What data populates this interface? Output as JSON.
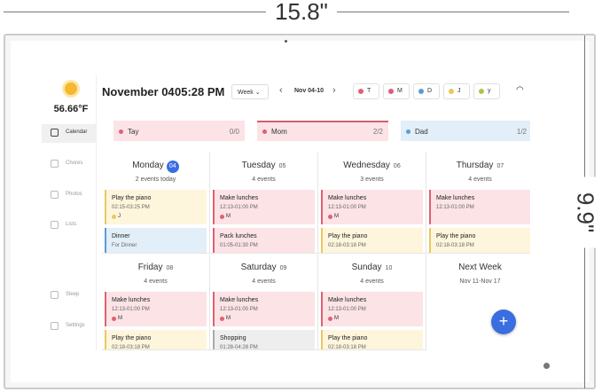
{
  "dimensions": {
    "width": "15.8\"",
    "height": "9.9\""
  },
  "sidebar": {
    "temperature": "56.66°F",
    "items": [
      "Calendar",
      "Chores",
      "Photos",
      "Lists",
      "Sleep",
      "Settings"
    ]
  },
  "header": {
    "date": "November 04",
    "time": "05:28 PM",
    "view": "Week",
    "range": "Nov 04-10",
    "members": [
      {
        "label": "T",
        "color": "#e0607a"
      },
      {
        "label": "M",
        "color": "#d9607a"
      },
      {
        "label": "D",
        "color": "#5b9bd5"
      },
      {
        "label": "J",
        "color": "#e8c860"
      },
      {
        "label": "y",
        "color": "#a8c84a"
      }
    ]
  },
  "chores": [
    {
      "name": "Tay",
      "progress": "0/0",
      "color": "#fbe3e6",
      "dot": "#e0607a"
    },
    {
      "name": "Mom",
      "progress": "2/2",
      "color": "#fbe3e6",
      "dot": "#d9607a"
    },
    {
      "name": "Dad",
      "progress": "1/2",
      "color": "#e2eef8",
      "dot": "#5b9bd5"
    }
  ],
  "days": [
    {
      "name": "Monday",
      "date": "04",
      "count": "2 events today",
      "events": [
        {
          "title": "Play the piano",
          "time": "02:15-03:25 PM",
          "who": "J",
          "color": "#fdf6dc",
          "accent": "#e8c860"
        },
        {
          "title": "Dinner",
          "time": "For Dinner",
          "color": "#e2eef8",
          "accent": "#5b9bd5"
        }
      ]
    },
    {
      "name": "Tuesday",
      "date": "05",
      "count": "4 events",
      "events": [
        {
          "title": "Make lunches",
          "time": "12:13-01:00 PM",
          "who": "M",
          "color": "#fbe3e6",
          "accent": "#e06070"
        },
        {
          "title": "Pack lunches",
          "time": "01:05-01:30 PM",
          "color": "#fbe3e6",
          "accent": "#e06070"
        }
      ]
    },
    {
      "name": "Wednesday",
      "date": "06",
      "count": "3 events",
      "events": [
        {
          "title": "Make lunches",
          "time": "12:13-01:00 PM",
          "who": "M",
          "color": "#fbe3e6",
          "accent": "#e06070"
        },
        {
          "title": "Play the piano",
          "time": "02:18-03:18 PM",
          "color": "#fdf6dc",
          "accent": "#e8c860"
        }
      ]
    },
    {
      "name": "Thursday",
      "date": "07",
      "count": "4 events",
      "events": [
        {
          "title": "Make lunches",
          "time": "12:13-01:00 PM",
          "color": "#fbe3e6",
          "accent": "#e06070"
        },
        {
          "title": "Play the piano",
          "time": "02:18-03:18 PM",
          "color": "#fdf6dc",
          "accent": "#e8c860"
        }
      ]
    },
    {
      "name": "Friday",
      "date": "08",
      "count": "4 events",
      "events": [
        {
          "title": "Make lunches",
          "time": "12:13-01:00 PM",
          "who": "M",
          "color": "#fbe3e6",
          "accent": "#e06070"
        },
        {
          "title": "Play the piano",
          "time": "02:18-03:18 PM",
          "color": "#fdf6dc",
          "accent": "#e8c860"
        }
      ]
    },
    {
      "name": "Saturday",
      "date": "09",
      "count": "4 events",
      "events": [
        {
          "title": "Make lunches",
          "time": "12:13-01:00 PM",
          "who": "M",
          "color": "#fbe3e6",
          "accent": "#e06070"
        },
        {
          "title": "Shopping",
          "time": "01:28-04:28 PM",
          "color": "#eeeeee",
          "accent": "#aaaaaa"
        }
      ]
    },
    {
      "name": "Sunday",
      "date": "10",
      "count": "4 events",
      "events": [
        {
          "title": "Make lunches",
          "time": "12:13-01:00 PM",
          "who": "M",
          "color": "#fbe3e6",
          "accent": "#e06070"
        },
        {
          "title": "Play the piano",
          "time": "02:18-03:18 PM",
          "color": "#fdf6dc",
          "accent": "#e8c860"
        }
      ]
    }
  ],
  "next_week": {
    "title": "Next Week",
    "range": "Nov 11-Nov 17"
  }
}
